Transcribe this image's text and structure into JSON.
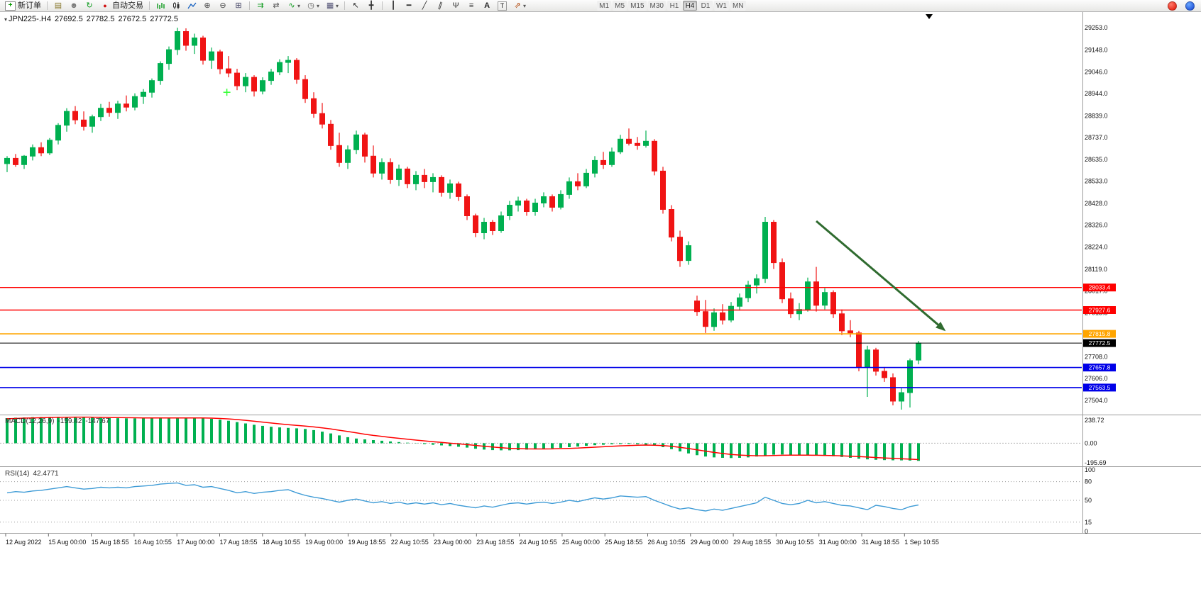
{
  "toolbar": {
    "new_order": "新订单",
    "auto_trading": "自动交易",
    "timeframes": [
      "M1",
      "M5",
      "M15",
      "M30",
      "H1",
      "H4",
      "D1",
      "W1",
      "MN"
    ],
    "active_timeframe": "H4",
    "icon_names": [
      "new-order",
      "charts-window",
      "profile",
      "refresh",
      "auto-trading",
      "bar-chart",
      "candlestick-chart",
      "line-chart",
      "zoom-in",
      "zoom-out",
      "tile-windows",
      "auto-scroll",
      "chart-shift",
      "indicators",
      "periods",
      "templates",
      "cursor",
      "crosshair",
      "vertical-line",
      "horizontal-line",
      "trendline",
      "equidistant-channel",
      "andrews-pitchfork",
      "fibonacci",
      "text",
      "text-label",
      "arrows",
      "notifications",
      "community"
    ]
  },
  "chart": {
    "symbol_period": "JPN225-.H4",
    "open": "27692.5",
    "high": "27782.5",
    "low": "27672.5",
    "close": "27772.5"
  },
  "chart_data": {
    "type": "candlestick",
    "symbol": "JPN225-",
    "timeframe": "H4",
    "colors": {
      "up": "#00B050",
      "down": "#F01414",
      "macd_hist": "#00B050",
      "macd_signal": "#FF0000",
      "rsi": "#3E9BD6",
      "arrow": "#2F6B2F",
      "background": "#FFFFFF"
    },
    "price_axis": {
      "render_max": 29290,
      "render_min": 27460,
      "ticks": [
        29253.0,
        29148.0,
        29046.0,
        28944.0,
        28839.0,
        28737.0,
        28635.0,
        28533.0,
        28428.0,
        28326.0,
        28224.0,
        28119.0,
        28017.0,
        27913.5,
        27811.3,
        27708.0,
        27606.0,
        27504.0
      ]
    },
    "hlines": [
      {
        "price": 28033.4,
        "color": "#FF0000",
        "label": "28033.4",
        "width": 1.4
      },
      {
        "price": 27927.6,
        "color": "#FF0000",
        "label": "27927.6",
        "width": 1.4
      },
      {
        "price": 27815.8,
        "color": "#FFA500",
        "label": "27815.8",
        "width": 1.6
      },
      {
        "price": 27772.5,
        "color": "#000000",
        "label": "27772.5",
        "width": 1
      },
      {
        "price": 27657.8,
        "color": "#0000E8",
        "label": "27657.8",
        "width": 1.6
      },
      {
        "price": 27563.5,
        "color": "#0000E8",
        "label": "27563.5",
        "width": 1.6
      }
    ],
    "current_price": 27772.5,
    "plus_marker": {
      "bar": 25.8,
      "price": 28950,
      "color": "#33FF33"
    },
    "arrow": {
      "from_bar": 95,
      "from_price": 28345,
      "to_bar": 110,
      "to_price": 27835,
      "color": "#2F6B2F"
    },
    "time_labels": [
      "12 Aug 2022",
      "15 Aug 00:00",
      "15 Aug 18:55",
      "16 Aug 10:55",
      "17 Aug 00:00",
      "17 Aug 18:55",
      "18 Aug 10:55",
      "19 Aug 00:00",
      "19 Aug 18:55",
      "22 Aug 10:55",
      "23 Aug 00:00",
      "23 Aug 18:55",
      "24 Aug 10:55",
      "25 Aug 00:00",
      "25 Aug 18:55",
      "26 Aug 10:55",
      "29 Aug 00:00",
      "29 Aug 18:55",
      "30 Aug 10:55",
      "31 Aug 00:00",
      "31 Aug 18:55",
      "1 Sep 10:55"
    ],
    "candles": [
      [
        28615,
        28650,
        28575,
        28640
      ],
      [
        28640,
        28660,
        28600,
        28610
      ],
      [
        28610,
        28655,
        28590,
        28650
      ],
      [
        28650,
        28705,
        28630,
        28690
      ],
      [
        28690,
        28715,
        28650,
        28665
      ],
      [
        28665,
        28735,
        28655,
        28725
      ],
      [
        28725,
        28805,
        28705,
        28795
      ],
      [
        28795,
        28875,
        28765,
        28860
      ],
      [
        28860,
        28885,
        28800,
        28820
      ],
      [
        28820,
        28860,
        28770,
        28790
      ],
      [
        28790,
        28845,
        28760,
        28835
      ],
      [
        28835,
        28895,
        28815,
        28875
      ],
      [
        28875,
        28905,
        28835,
        28855
      ],
      [
        28855,
        28910,
        28825,
        28895
      ],
      [
        28895,
        28935,
        28860,
        28880
      ],
      [
        28880,
        28945,
        28865,
        28930
      ],
      [
        28930,
        28965,
        28895,
        28950
      ],
      [
        28950,
        29015,
        28925,
        29005
      ],
      [
        29005,
        29095,
        28985,
        29085
      ],
      [
        29085,
        29165,
        29055,
        29150
      ],
      [
        29150,
        29253,
        29125,
        29235
      ],
      [
        29235,
        29250,
        29145,
        29170
      ],
      [
        29170,
        29225,
        29130,
        29205
      ],
      [
        29205,
        29215,
        29080,
        29100
      ],
      [
        29100,
        29160,
        29060,
        29140
      ],
      [
        29140,
        29150,
        29035,
        29060
      ],
      [
        29060,
        29120,
        29020,
        29040
      ],
      [
        29040,
        29060,
        28960,
        28980
      ],
      [
        28980,
        29040,
        28950,
        29020
      ],
      [
        29020,
        29030,
        28930,
        28955
      ],
      [
        28955,
        29020,
        28940,
        29005
      ],
      [
        29005,
        29060,
        28985,
        29045
      ],
      [
        29045,
        29105,
        29030,
        29090
      ],
      [
        29090,
        29120,
        29040,
        29100
      ],
      [
        29100,
        29110,
        28990,
        29010
      ],
      [
        29010,
        29030,
        28900,
        28920
      ],
      [
        28920,
        28950,
        28830,
        28850
      ],
      [
        28850,
        28900,
        28780,
        28800
      ],
      [
        28800,
        28820,
        28680,
        28700
      ],
      [
        28700,
        28760,
        28600,
        28620
      ],
      [
        28620,
        28700,
        28590,
        28680
      ],
      [
        28680,
        28770,
        28660,
        28750
      ],
      [
        28750,
        28760,
        28620,
        28650
      ],
      [
        28650,
        28700,
        28550,
        28570
      ],
      [
        28570,
        28640,
        28540,
        28620
      ],
      [
        28620,
        28640,
        28520,
        28540
      ],
      [
        28540,
        28610,
        28510,
        28590
      ],
      [
        28590,
        28600,
        28500,
        28520
      ],
      [
        28520,
        28580,
        28490,
        28560
      ],
      [
        28560,
        28590,
        28500,
        28530
      ],
      [
        28530,
        28570,
        28480,
        28550
      ],
      [
        28550,
        28560,
        28460,
        28480
      ],
      [
        28480,
        28540,
        28450,
        28520
      ],
      [
        28520,
        28530,
        28440,
        28460
      ],
      [
        28460,
        28470,
        28350,
        28370
      ],
      [
        28370,
        28380,
        28270,
        28290
      ],
      [
        28290,
        28360,
        28260,
        28340
      ],
      [
        28340,
        28350,
        28280,
        28300
      ],
      [
        28300,
        28390,
        28290,
        28370
      ],
      [
        28370,
        28440,
        28350,
        28420
      ],
      [
        28420,
        28460,
        28390,
        28440
      ],
      [
        28440,
        28450,
        28370,
        28390
      ],
      [
        28390,
        28450,
        28370,
        28430
      ],
      [
        28430,
        28480,
        28410,
        28460
      ],
      [
        28460,
        28470,
        28390,
        28410
      ],
      [
        28410,
        28490,
        28400,
        28470
      ],
      [
        28470,
        28550,
        28450,
        28530
      ],
      [
        28530,
        28570,
        28490,
        28510
      ],
      [
        28510,
        28590,
        28500,
        28570
      ],
      [
        28570,
        28650,
        28550,
        28630
      ],
      [
        28630,
        28670,
        28590,
        28610
      ],
      [
        28610,
        28690,
        28600,
        28670
      ],
      [
        28670,
        28750,
        28660,
        28730
      ],
      [
        28730,
        28780,
        28700,
        28710
      ],
      [
        28710,
        28740,
        28680,
        28700
      ],
      [
        28700,
        28770,
        28690,
        28720
      ],
      [
        28720,
        28730,
        28560,
        28580
      ],
      [
        28580,
        28600,
        28380,
        28400
      ],
      [
        28400,
        28420,
        28250,
        28270
      ],
      [
        28270,
        28300,
        28130,
        28160
      ],
      [
        28160,
        28250,
        28140,
        28230
      ],
      [
        27970,
        27995,
        27900,
        27920
      ],
      [
        27920,
        27975,
        27820,
        27850
      ],
      [
        27850,
        27935,
        27830,
        27915
      ],
      [
        27915,
        27955,
        27860,
        27880
      ],
      [
        27880,
        27965,
        27870,
        27945
      ],
      [
        27945,
        28005,
        27925,
        27985
      ],
      [
        27985,
        28065,
        27965,
        28045
      ],
      [
        28045,
        28095,
        28005,
        28075
      ],
      [
        28075,
        28365,
        28055,
        28340
      ],
      [
        28340,
        28350,
        28120,
        28150
      ],
      [
        28150,
        28170,
        27960,
        27980
      ],
      [
        27980,
        28010,
        27890,
        27910
      ],
      [
        27910,
        27960,
        27880,
        27930
      ],
      [
        27930,
        28080,
        27920,
        28060
      ],
      [
        28060,
        28130,
        27920,
        27950
      ],
      [
        27950,
        28030,
        27930,
        28010
      ],
      [
        28010,
        28020,
        27890,
        27910
      ],
      [
        27910,
        27930,
        27810,
        27830
      ],
      [
        27830,
        27880,
        27800,
        27820
      ],
      [
        27820,
        27830,
        27640,
        27660
      ],
      [
        27660,
        27760,
        27520,
        27740
      ],
      [
        27740,
        27750,
        27620,
        27640
      ],
      [
        27640,
        27660,
        27590,
        27610
      ],
      [
        27610,
        27630,
        27480,
        27500
      ],
      [
        27500,
        27560,
        27460,
        27540
      ],
      [
        27540,
        27700,
        27470,
        27690
      ],
      [
        27692.5,
        27782.5,
        27672.5,
        27772.5
      ]
    ],
    "macd": {
      "name": "MACD(12,26,9)",
      "value_main": "-159.42",
      "value_signal": "-147.67",
      "scale": {
        "max": 238.72,
        "mid": 0.0,
        "min": -195.69
      },
      "histogram": [
        225,
        230,
        232,
        235,
        236,
        237,
        238,
        238,
        236,
        233,
        230,
        228,
        226,
        225,
        224,
        224,
        223,
        224,
        226,
        228,
        230,
        232,
        230,
        226,
        220,
        212,
        202,
        190,
        178,
        166,
        156,
        148,
        142,
        138,
        134,
        128,
        118,
        104,
        88,
        70,
        54,
        42,
        34,
        28,
        22,
        16,
        10,
        4,
        -2,
        -8,
        -14,
        -20,
        -26,
        -32,
        -40,
        -50,
        -58,
        -62,
        -64,
        -64,
        -62,
        -58,
        -54,
        -50,
        -46,
        -42,
        -36,
        -30,
        -24,
        -18,
        -14,
        -10,
        -8,
        -8,
        -10,
        -14,
        -22,
        -36,
        -54,
        -74,
        -92,
        -108,
        -120,
        -128,
        -132,
        -134,
        -132,
        -128,
        -120,
        -110,
        -104,
        -102,
        -104,
        -108,
        -110,
        -112,
        -114,
        -118,
        -124,
        -132,
        -140,
        -146,
        -150,
        -152,
        -154,
        -155,
        -157,
        -159.42
      ],
      "signal": [
        220,
        223,
        226,
        228,
        230,
        232,
        233,
        234,
        235,
        235,
        234,
        233,
        232,
        231,
        230,
        229,
        228,
        227,
        227,
        227,
        228,
        228,
        228,
        227,
        226,
        223,
        219,
        213,
        206,
        198,
        190,
        182,
        174,
        167,
        160,
        154,
        147,
        138,
        128,
        117,
        105,
        93,
        81,
        70,
        61,
        52,
        44,
        36,
        28,
        21,
        14,
        7,
        0,
        -6,
        -13,
        -20,
        -28,
        -35,
        -41,
        -46,
        -49,
        -51,
        -52,
        -52,
        -51,
        -49,
        -47,
        -44,
        -40,
        -36,
        -32,
        -28,
        -24,
        -21,
        -18,
        -17,
        -18,
        -22,
        -28,
        -37,
        -48,
        -60,
        -72,
        -83,
        -93,
        -101,
        -107,
        -111,
        -113,
        -113,
        -111,
        -109,
        -108,
        -108,
        -108,
        -109,
        -110,
        -112,
        -114,
        -117,
        -121,
        -125,
        -129,
        -133,
        -137,
        -141,
        -144,
        -147.67
      ]
    },
    "rsi": {
      "name": "RSI(14)",
      "value": "42.4771",
      "levels": [
        80,
        50,
        15
      ],
      "axis_labels": [
        100,
        80,
        50,
        15,
        0
      ],
      "series": [
        62,
        64,
        63,
        65,
        66,
        68,
        70,
        72,
        70,
        68,
        69,
        71,
        70,
        71,
        70,
        72,
        73,
        74,
        76,
        77,
        78,
        74,
        75,
        71,
        72,
        69,
        66,
        62,
        64,
        61,
        63,
        64,
        66,
        67,
        62,
        58,
        55,
        53,
        50,
        47,
        50,
        52,
        49,
        46,
        48,
        45,
        47,
        44,
        46,
        44,
        46,
        43,
        45,
        42,
        40,
        38,
        41,
        39,
        42,
        45,
        46,
        44,
        46,
        47,
        45,
        47,
        50,
        48,
        51,
        54,
        52,
        54,
        57,
        56,
        55,
        56,
        50,
        45,
        40,
        36,
        38,
        35,
        33,
        36,
        34,
        37,
        40,
        43,
        46,
        55,
        50,
        45,
        43,
        45,
        50,
        46,
        48,
        45,
        42,
        41,
        38,
        35,
        42,
        40,
        37,
        35,
        40,
        42.4771
      ]
    }
  }
}
